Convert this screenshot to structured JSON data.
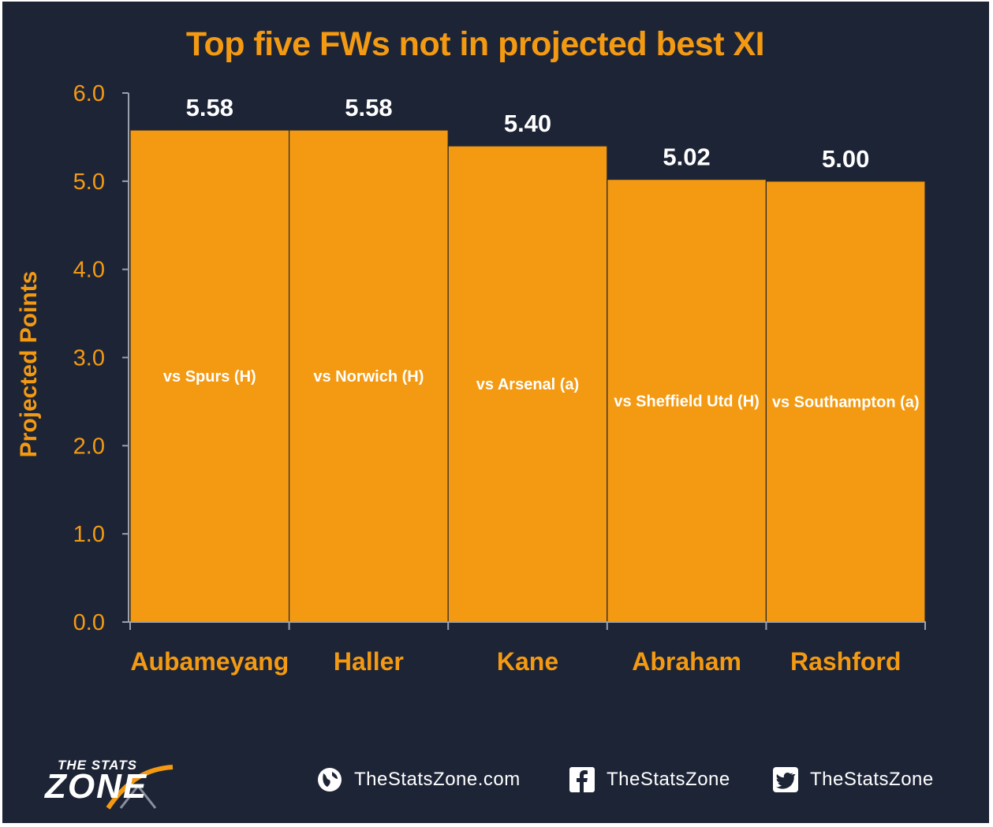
{
  "chart_data": {
    "type": "bar",
    "title": "Top five FWs not in projected best XI",
    "ylabel": "Projected Points",
    "xlabel": "",
    "ylim": [
      0,
      6
    ],
    "yticks": [
      "0.0",
      "1.0",
      "2.0",
      "3.0",
      "4.0",
      "5.0",
      "6.0"
    ],
    "categories": [
      "Aubameyang",
      "Haller",
      "Kane",
      "Abraham",
      "Rashford"
    ],
    "values": [
      5.58,
      5.58,
      5.4,
      5.02,
      5.0
    ],
    "value_labels": [
      "5.58",
      "5.58",
      "5.40",
      "5.02",
      "5.00"
    ],
    "fixtures": [
      "vs Spurs (H)",
      "vs Norwich (H)",
      "vs Arsenal (a)",
      "vs Sheffield Utd (H)",
      "vs Southampton (a)"
    ],
    "grid": false,
    "legend": "none",
    "colors": {
      "background": "#1d2436",
      "bar": "#f39a12",
      "text_accent": "#f39a12",
      "text_light": "#ffffff"
    }
  },
  "footer": {
    "logo_top": "THE STATS",
    "logo_main": "ZONE",
    "website": "TheStatsZone.com",
    "facebook": "TheStatsZone",
    "twitter": "TheStatsZone",
    "icons": [
      "globe-icon",
      "facebook-icon",
      "twitter-icon"
    ]
  }
}
